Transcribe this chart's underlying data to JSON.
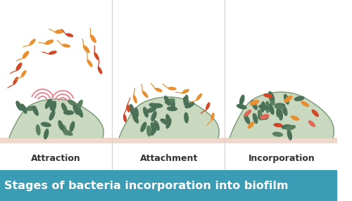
{
  "title": "Stages of bacteria incorporation into biofilm",
  "title_bg_color": "#3a9db5",
  "title_text_color": "#ffffff",
  "stage_labels": [
    "Attraction",
    "Attachment",
    "Incorporation"
  ],
  "bg_color": "#ffffff",
  "surface_color": "#f0d8cc",
  "biofilm_color": "#b8ccb0",
  "biofilm_fill_color": "#c8d9c0",
  "biofilm_edge_color": "#7a9a7a",
  "bacteria_green_dark": "#4a7055",
  "bacteria_green_mid": "#5a8060",
  "bacteria_orange_color": "#e89030",
  "bacteria_red_color": "#d04828",
  "bacteria_pink_color": "#e06858",
  "wave_color": "#e88090",
  "divider_color": "#d0d0d0",
  "label_color": "#333333",
  "surface_line_color": "#e8c8b8"
}
